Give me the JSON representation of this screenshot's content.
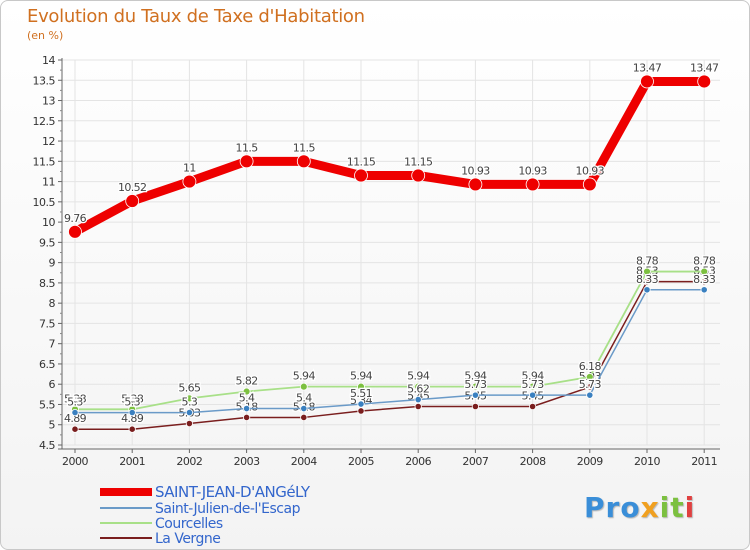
{
  "chart_data": {
    "type": "line",
    "title": "Evolution du Taux de Taxe d'Habitation",
    "ylabel": "(en %)",
    "xlabel": "",
    "ylim": [
      4.5,
      14
    ],
    "yticks": [
      4.5,
      5,
      5.5,
      6,
      6.5,
      7,
      7.5,
      8,
      8.5,
      9,
      9.5,
      10,
      10.5,
      11,
      11.5,
      12,
      12.5,
      13,
      13.5,
      14
    ],
    "categories": [
      "2000",
      "2001",
      "2002",
      "2003",
      "2004",
      "2005",
      "2006",
      "2007",
      "2008",
      "2009",
      "2010",
      "2011"
    ],
    "series": [
      {
        "name": "La Vergne",
        "color": "#7a1e1e",
        "values": [
          4.89,
          4.89,
          5.03,
          5.18,
          5.18,
          5.34,
          5.45,
          5.45,
          5.45,
          5.93,
          8.53,
          8.53
        ],
        "labels": [
          "4.89",
          "4.89",
          "5.03",
          "5.18",
          "5.18",
          "5.34",
          "5.45",
          "5.45",
          "5.45",
          "5.93",
          "8.53",
          "8.53"
        ]
      },
      {
        "name": "Courcelles",
        "color": "#a8e088",
        "values": [
          5.38,
          5.38,
          5.65,
          5.82,
          5.94,
          5.94,
          5.94,
          5.94,
          5.94,
          6.18,
          8.78,
          8.78
        ],
        "labels": [
          "5.38",
          "5.38",
          "5.65",
          "5.82",
          "5.94",
          "5.94",
          "5.94",
          "5.94",
          "5.94",
          "6.18",
          "8.78",
          "8.78"
        ]
      },
      {
        "name": "Saint-Julien-de-l'Escap",
        "color": "#6a9ac8",
        "values": [
          5.3,
          5.3,
          5.3,
          5.4,
          5.4,
          5.51,
          5.62,
          5.73,
          5.73,
          5.73,
          8.33,
          8.33
        ],
        "labels": [
          "5.3",
          "5.3",
          "5.3",
          "5.4",
          "5.4",
          "5.51",
          "5.62",
          "5.73",
          "5.73",
          "5.73",
          "8.33",
          "8.33"
        ]
      },
      {
        "name": "SAINT-JEAN-D'ANGéLY",
        "color": "#ee0000",
        "values": [
          9.76,
          10.52,
          11,
          11.5,
          11.5,
          11.15,
          11.15,
          10.93,
          10.93,
          10.93,
          13.47,
          13.47
        ],
        "labels": [
          "9.76",
          "10.52",
          "11",
          "11.5",
          "11.5",
          "11.15",
          "11.15",
          "10.93",
          "10.93",
          "10.93",
          "13.47",
          "13.47"
        ]
      }
    ],
    "legend": {
      "position": "bottom-left",
      "entries": [
        "SAINT-JEAN-D'ANGéLY",
        "Saint-Julien-de-l'Escap",
        "Courcelles",
        "La Vergne"
      ]
    }
  },
  "logo": {
    "part1": "Pro",
    "part2": "x",
    "part3": "it",
    "part4": "i"
  }
}
